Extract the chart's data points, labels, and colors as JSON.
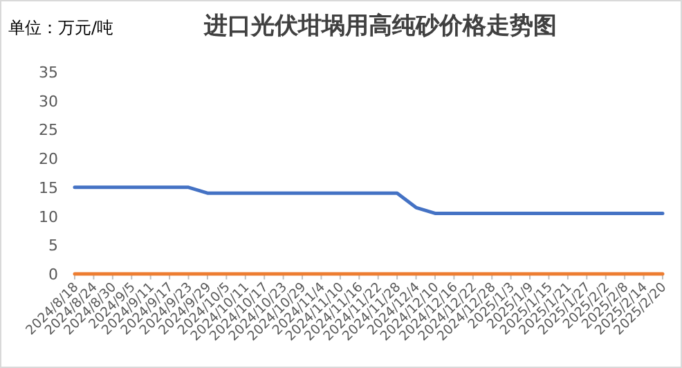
{
  "chart_data": {
    "type": "line",
    "title": "进口光伏坩埚用高纯砂价格走势图",
    "ylabel": "单位：万元/吨",
    "categories": [
      "2024/8/18",
      "2024/8/24",
      "2024/8/30",
      "2024/9/5",
      "2024/9/11",
      "2024/9/17",
      "2024/9/23",
      "2024/9/29",
      "2024/10/5",
      "2024/10/11",
      "2024/10/17",
      "2024/10/23",
      "2024/10/29",
      "2024/11/4",
      "2024/11/10",
      "2024/11/16",
      "2024/11/22",
      "2024/11/28",
      "2024/12/4",
      "2024/12/10",
      "2024/12/16",
      "2024/12/22",
      "2024/12/28",
      "2025/1/3",
      "2025/1/9",
      "2025/1/15",
      "2025/1/21",
      "2025/1/27",
      "2025/2/2",
      "2025/2/8",
      "2025/2/14",
      "2025/2/20"
    ],
    "series": [
      {
        "color": "#4472c4",
        "values": [
          15,
          15,
          15,
          15,
          15,
          15,
          15,
          14,
          14,
          14,
          14,
          14,
          14,
          14,
          14,
          14,
          14,
          14,
          11.5,
          10.5,
          10.5,
          10.5,
          10.5,
          10.5,
          10.5,
          10.5,
          10.5,
          10.5,
          10.5,
          10.5,
          10.5,
          10.5
        ]
      },
      {
        "color": "#ed7d31",
        "values": [
          0,
          0,
          0,
          0,
          0,
          0,
          0,
          0,
          0,
          0,
          0,
          0,
          0,
          0,
          0,
          0,
          0,
          0,
          0,
          0,
          0,
          0,
          0,
          0,
          0,
          0,
          0,
          0,
          0,
          0,
          0,
          0
        ]
      }
    ],
    "ylim": [
      0,
      35
    ],
    "yticks": [
      0,
      5,
      10,
      15,
      20,
      25,
      30,
      35
    ],
    "grid": false,
    "marker": "none",
    "line_style": "solid"
  }
}
